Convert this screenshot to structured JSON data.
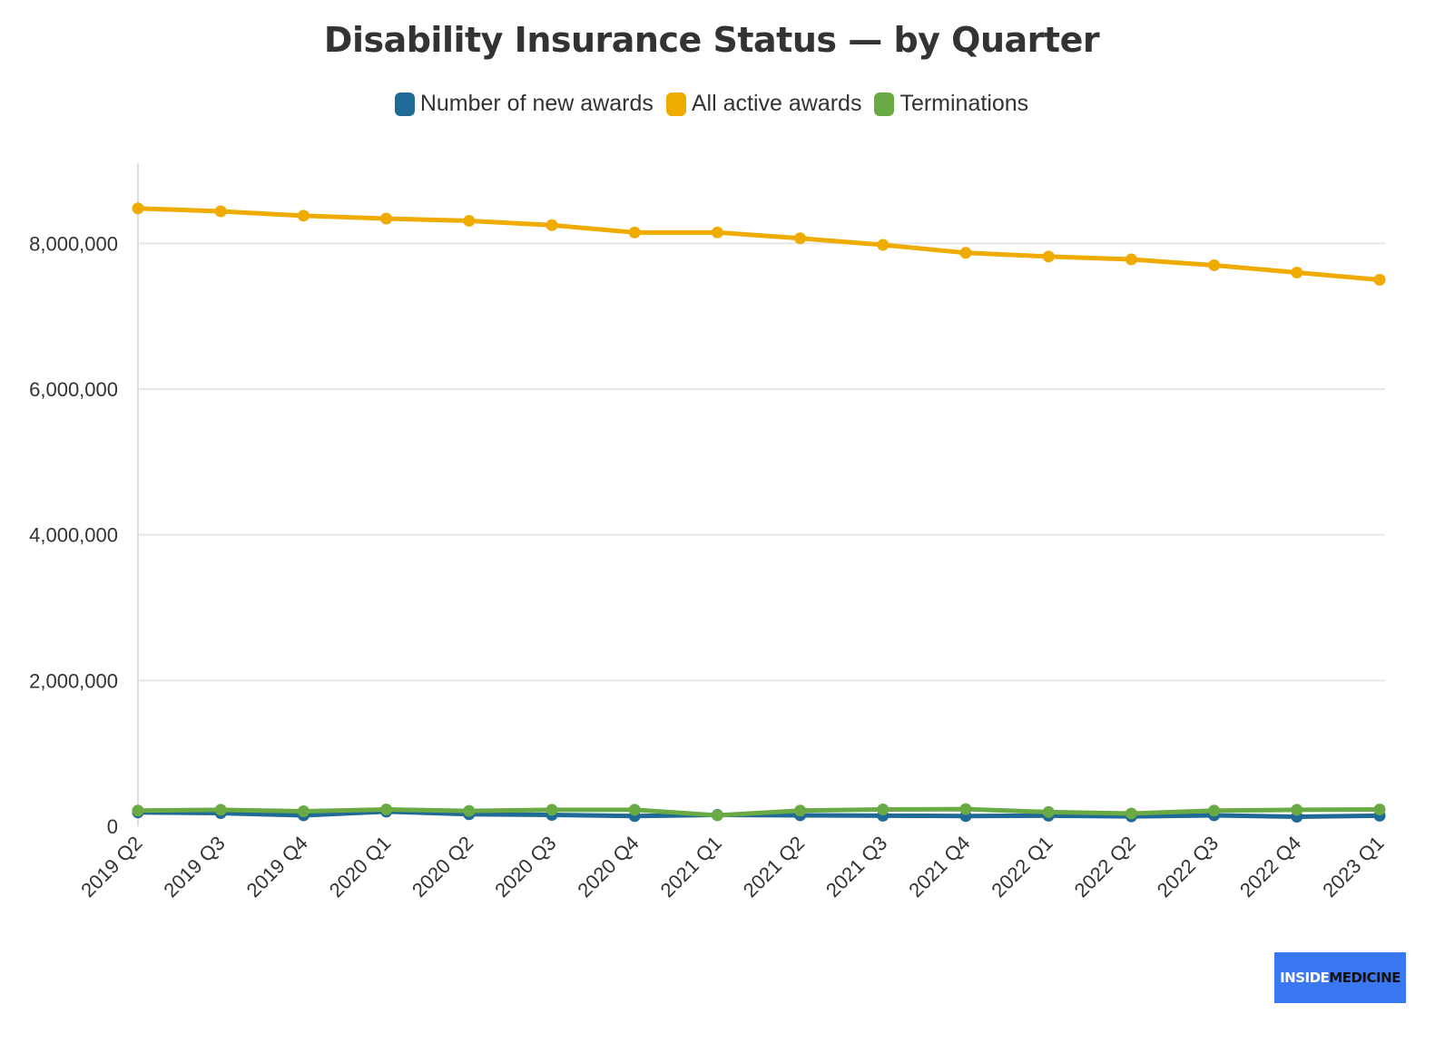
{
  "chart_data": {
    "type": "line",
    "title": "Disability Insurance Status — by Quarter",
    "categories": [
      "2019 Q2",
      "2019 Q3",
      "2019 Q4",
      "2020 Q1",
      "2020 Q2",
      "2020 Q3",
      "2020 Q4",
      "2021 Q1",
      "2021 Q2",
      "2021 Q3",
      "2021 Q4",
      "2022 Q1",
      "2022 Q2",
      "2022 Q3",
      "2022 Q4",
      "2023 Q1"
    ],
    "series": [
      {
        "name": "Number of new awards",
        "color": "#1f6a96",
        "values": [
          190000,
          180000,
          150000,
          200000,
          165000,
          155000,
          140000,
          155000,
          150000,
          145000,
          140000,
          145000,
          135000,
          150000,
          130000,
          145000
        ]
      },
      {
        "name": "All active awards",
        "color": "#f0ab00",
        "values": [
          8480000,
          8440000,
          8380000,
          8340000,
          8310000,
          8250000,
          8150000,
          8150000,
          8070000,
          7980000,
          7870000,
          7820000,
          7780000,
          7700000,
          7600000,
          7500000
        ]
      },
      {
        "name": "Terminations",
        "color": "#6aaa45",
        "values": [
          215000,
          225000,
          205000,
          230000,
          210000,
          225000,
          225000,
          150000,
          215000,
          230000,
          235000,
          195000,
          175000,
          215000,
          225000,
          230000
        ]
      }
    ],
    "yticks": [
      0,
      2000000,
      4000000,
      6000000,
      8000000
    ],
    "ytick_labels": [
      "0",
      "2,000,000",
      "4,000,000",
      "6,000,000",
      "8,000,000"
    ],
    "ylim": [
      0,
      9100000
    ],
    "grid": true,
    "legend_position": "top-center"
  },
  "brand": {
    "part1": "INSIDE",
    "part2": "MEDICINE"
  }
}
